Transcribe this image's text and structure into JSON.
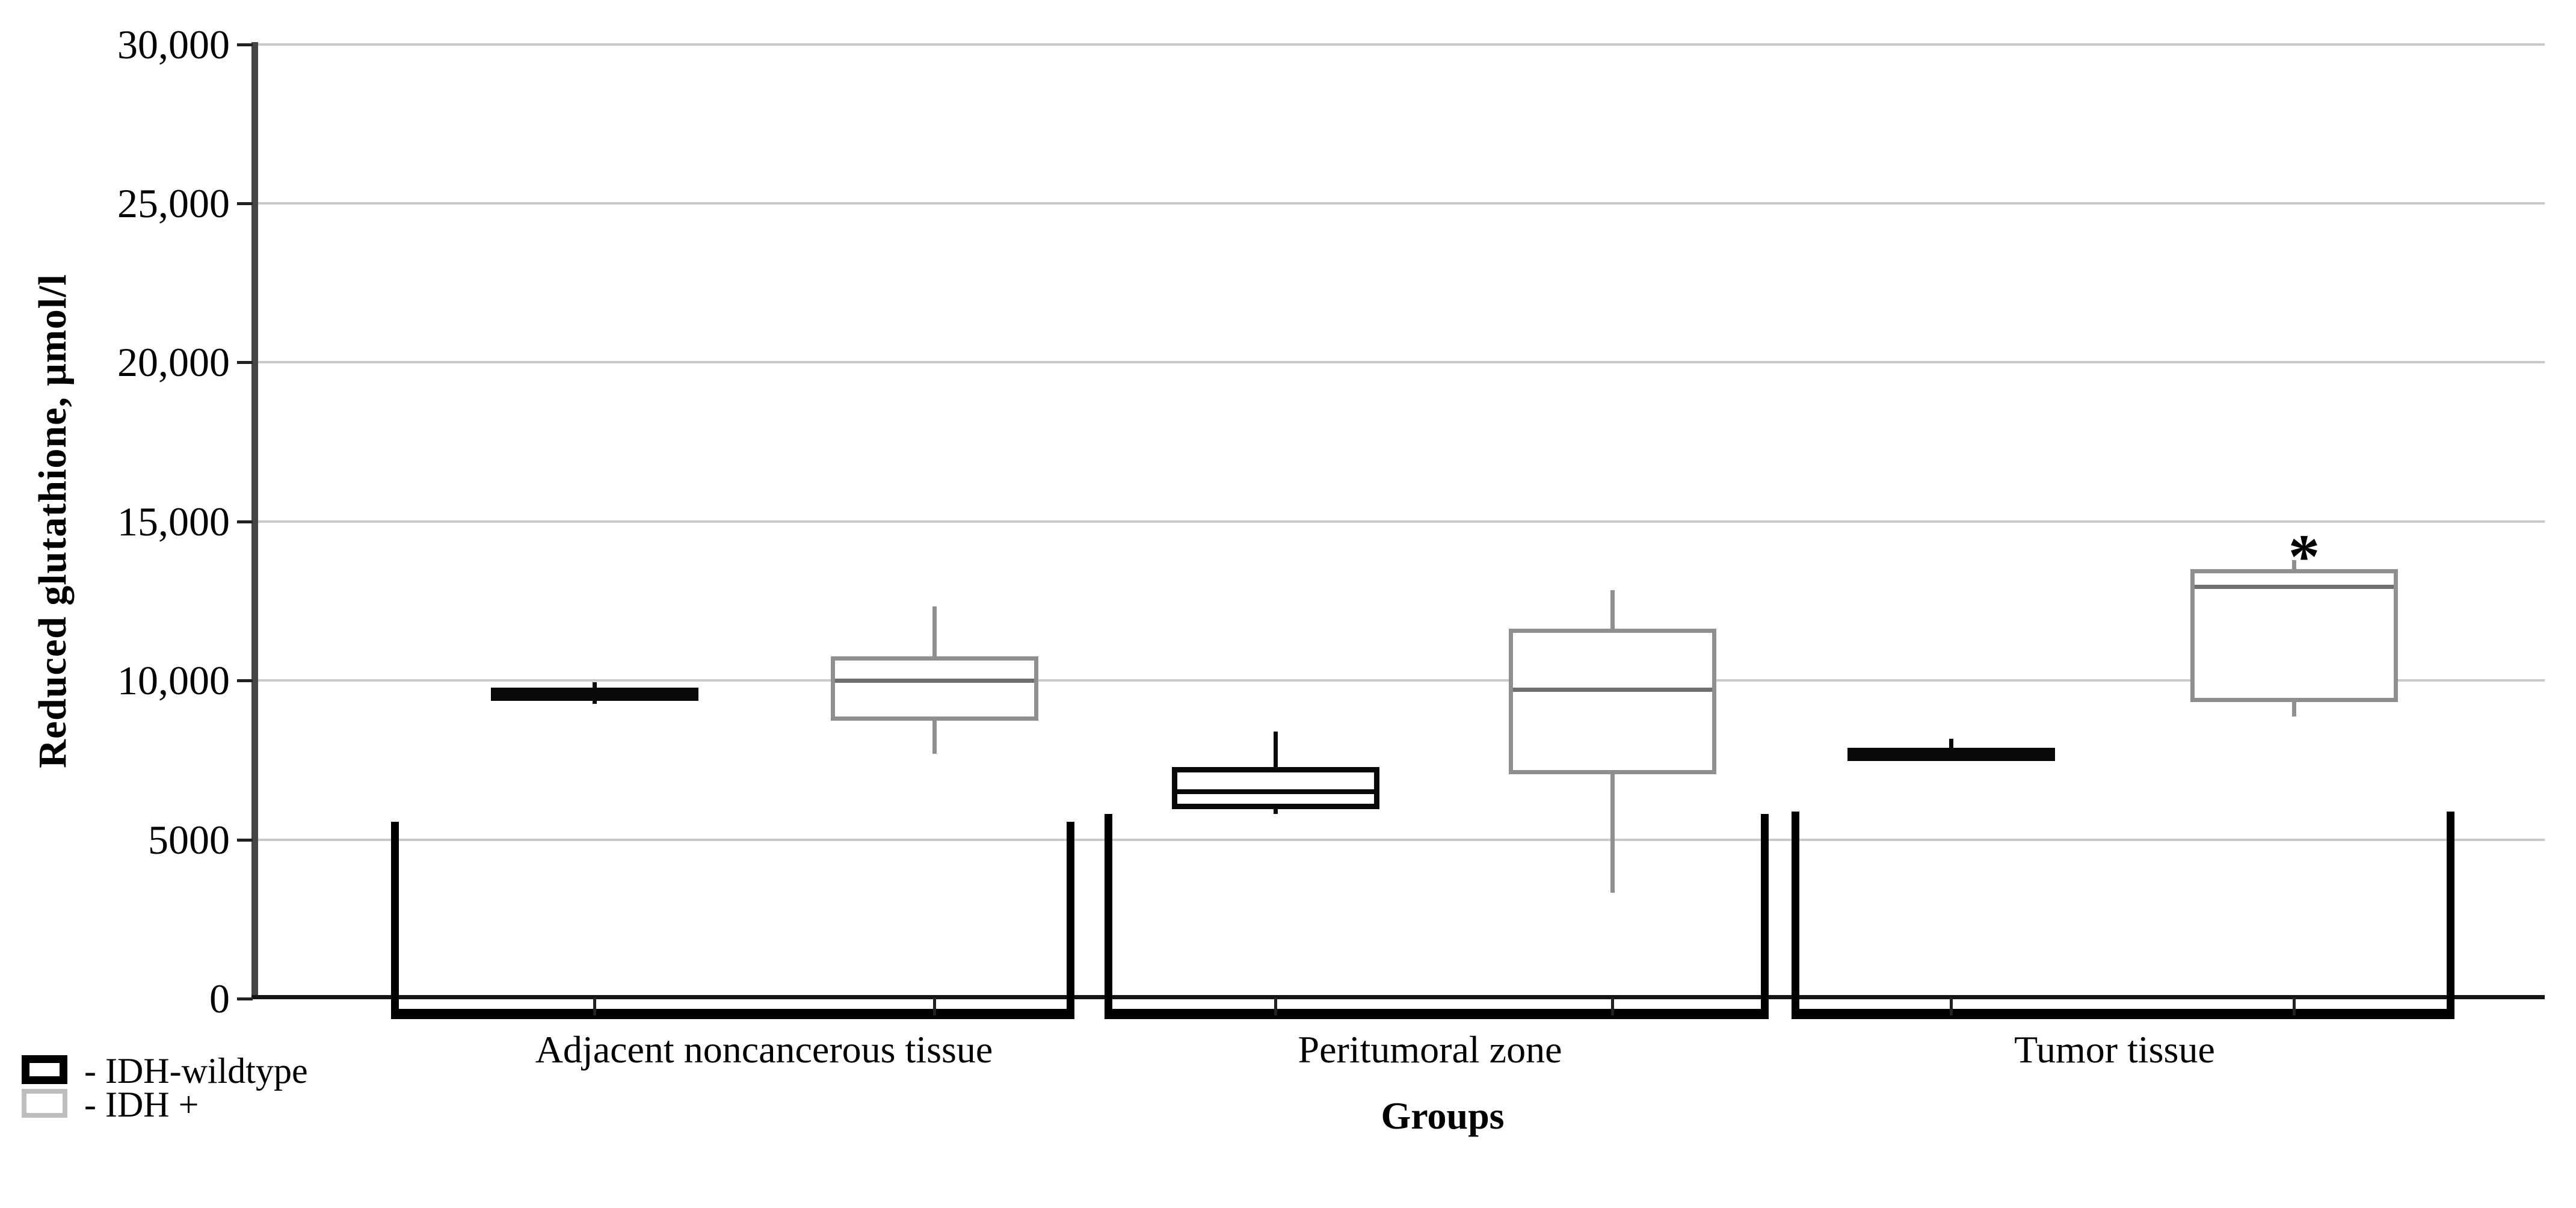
{
  "figure": {
    "y_axis": {
      "title": "Reduced glutathione, μmol/l",
      "tick_labels": [
        "30,000",
        "25,000",
        "20,000",
        "15,000",
        "10,000",
        "5000",
        "0"
      ],
      "tick_values": [
        30000,
        25000,
        20000,
        15000,
        10000,
        5000,
        0
      ]
    },
    "x_axis": {
      "title": "Groups"
    },
    "legend": {
      "items": [
        {
          "label": "- IDH-wildtype",
          "series": "IDH-wildtype",
          "swatch_color": "#000000"
        },
        {
          "label": "- IDH +",
          "series": "IDH +",
          "swatch_color": "#bdbdbd"
        }
      ]
    },
    "colors": {
      "gridline": "#cacaca",
      "axis": "#141414",
      "series_idh_wildtype": "#0a0a0a",
      "series_idh_plus": "#8f8f8f"
    }
  },
  "chart_data": {
    "type": "boxplot",
    "title": "",
    "xlabel": "Groups",
    "ylabel": "Reduced glutathione, μmol/l",
    "ylim": [
      0,
      30000
    ],
    "grid": true,
    "legend_position": "bottom-left",
    "categories": [
      "Adjacent noncancerous tissue",
      "Peritumoral zone",
      "Tumor tissue"
    ],
    "series": [
      {
        "name": "IDH-wildtype",
        "color": "#0a0a0a",
        "boxes": [
          {
            "min": 9250,
            "q1": 9430,
            "median": 9600,
            "q3": 9770,
            "max": 9940
          },
          {
            "min": 5800,
            "q1": 5970,
            "median": 6500,
            "q3": 7290,
            "max": 8390
          },
          {
            "min": 7500,
            "q1": 7540,
            "median": 7690,
            "q3": 7880,
            "max": 8170
          }
        ]
      },
      {
        "name": "IDH +",
        "color": "#8f8f8f",
        "boxes": [
          {
            "min": 7690,
            "q1": 8730,
            "median": 10000,
            "q3": 10760,
            "max": 12330
          },
          {
            "min": 3320,
            "q1": 7050,
            "median": 9720,
            "q3": 11630,
            "max": 12840
          },
          {
            "min": 8860,
            "q1": 9330,
            "median": 12950,
            "q3": 13500,
            "max": 13780
          }
        ]
      }
    ],
    "annotations": [
      {
        "text": "*",
        "category": "Tumor tissue",
        "series": "IDH +"
      }
    ]
  }
}
